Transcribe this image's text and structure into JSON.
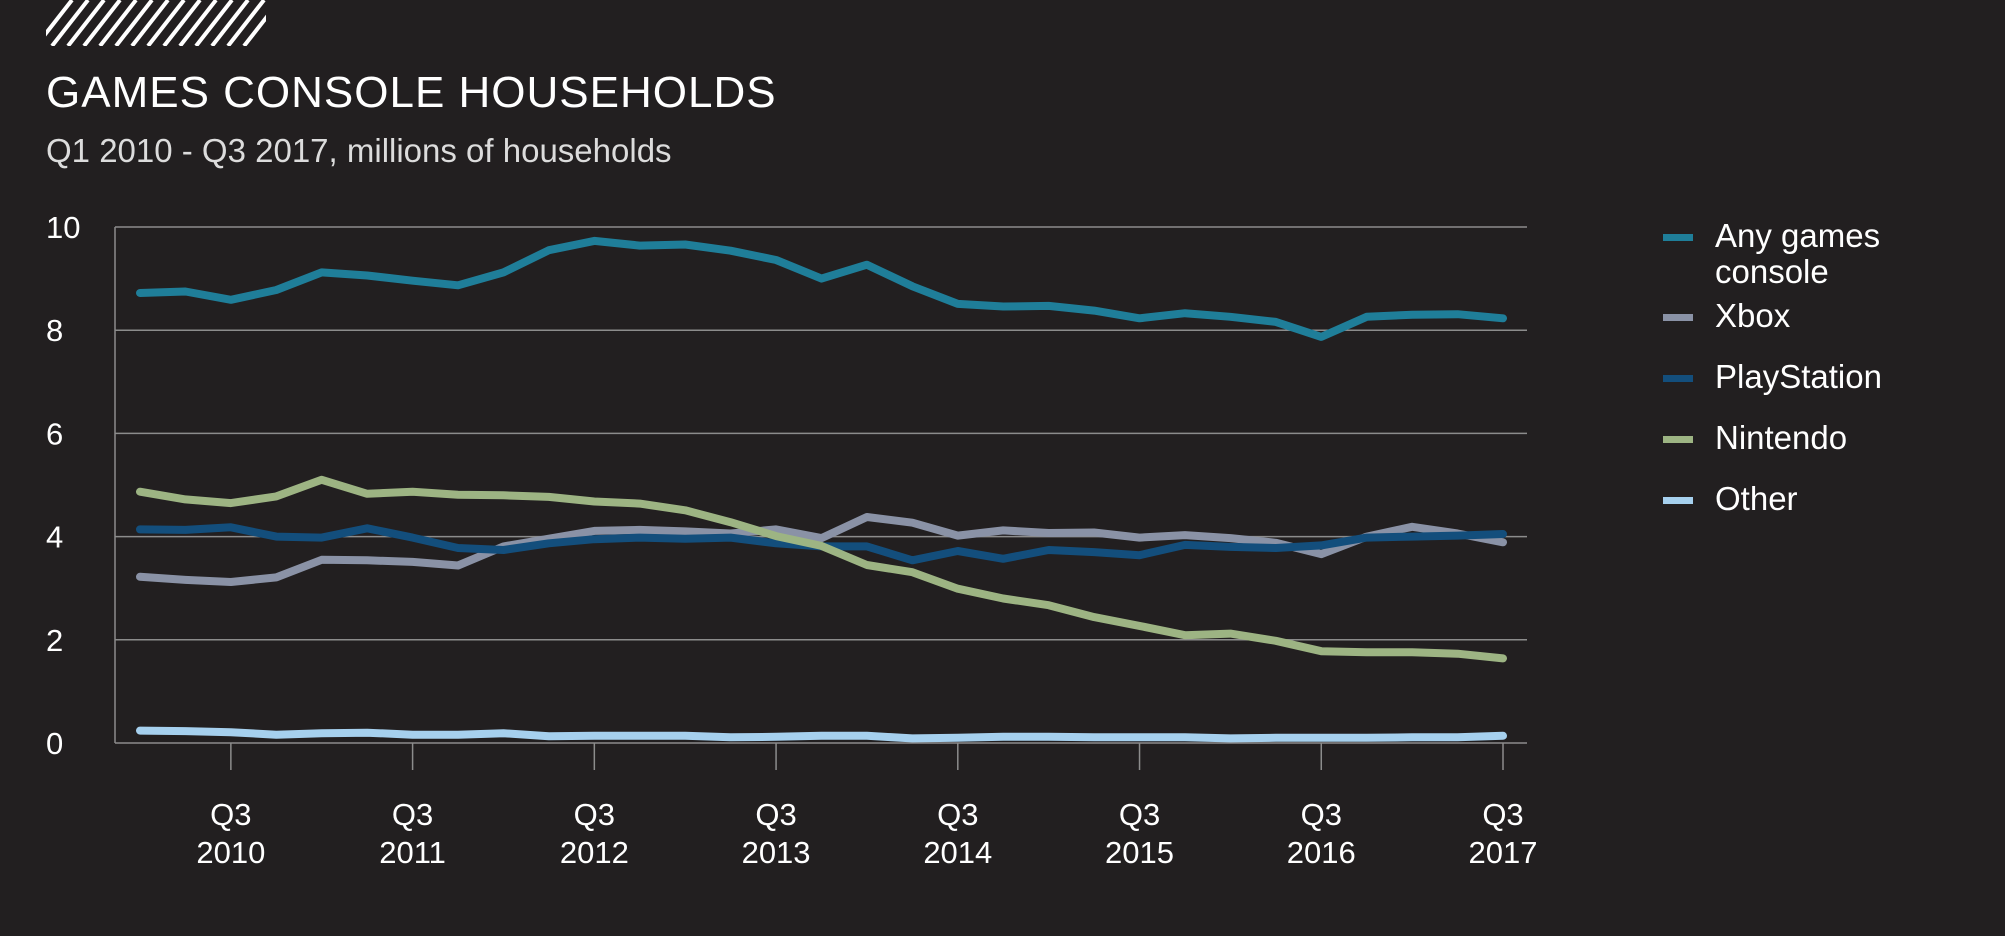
{
  "header": {
    "title": "GAMES CONSOLE HOUSEHOLDS",
    "subtitle": "Q1 2010 - Q3 2017, millions of households"
  },
  "chart_data": {
    "type": "line",
    "title": "GAMES CONSOLE HOUSEHOLDS",
    "subtitle": "Q1 2010 - Q3 2017, millions of households",
    "xlabel": "",
    "ylabel": "",
    "ylim": [
      0,
      10
    ],
    "yticks": [
      0,
      2,
      4,
      6,
      8,
      10
    ],
    "grid": true,
    "legend_position": "right",
    "x": [
      "Q1 2010",
      "Q2 2010",
      "Q3 2010",
      "Q4 2010",
      "Q1 2011",
      "Q2 2011",
      "Q3 2011",
      "Q4 2011",
      "Q1 2012",
      "Q2 2012",
      "Q3 2012",
      "Q4 2012",
      "Q1 2013",
      "Q2 2013",
      "Q3 2013",
      "Q4 2013",
      "Q1 2014",
      "Q2 2014",
      "Q3 2014",
      "Q4 2014",
      "Q1 2015",
      "Q2 2015",
      "Q3 2015",
      "Q4 2015",
      "Q1 2016",
      "Q2 2016",
      "Q3 2016",
      "Q4 2016",
      "Q1 2017",
      "Q2 2017",
      "Q3 2017"
    ],
    "x_tick_labels": [
      {
        "quarter": "Q3",
        "year": "2010",
        "index": 2
      },
      {
        "quarter": "Q3",
        "year": "2011",
        "index": 6
      },
      {
        "quarter": "Q3",
        "year": "2012",
        "index": 10
      },
      {
        "quarter": "Q3",
        "year": "2013",
        "index": 14
      },
      {
        "quarter": "Q3",
        "year": "2014",
        "index": 18
      },
      {
        "quarter": "Q3",
        "year": "2015",
        "index": 22
      },
      {
        "quarter": "Q3",
        "year": "2016",
        "index": 26
      },
      {
        "quarter": "Q3",
        "year": "2017",
        "index": 30
      }
    ],
    "series": [
      {
        "name": "Any games console",
        "color": "#1f7e99",
        "values": [
          8.72,
          8.75,
          8.59,
          8.78,
          9.12,
          9.06,
          8.96,
          8.87,
          9.12,
          9.55,
          9.73,
          9.64,
          9.66,
          9.54,
          9.36,
          9.0,
          9.27,
          8.85,
          8.51,
          8.46,
          8.47,
          8.38,
          8.23,
          8.33,
          8.26,
          8.16,
          7.87,
          8.26,
          8.3,
          8.31,
          8.23
        ]
      },
      {
        "name": "Xbox",
        "color": "#8a92a6",
        "values": [
          3.22,
          3.16,
          3.12,
          3.21,
          3.55,
          3.54,
          3.51,
          3.44,
          3.81,
          3.96,
          4.11,
          4.13,
          4.1,
          4.06,
          4.14,
          3.97,
          4.38,
          4.27,
          4.02,
          4.12,
          4.07,
          4.08,
          3.98,
          4.03,
          3.97,
          3.88,
          3.66,
          4.0,
          4.19,
          4.06,
          3.89
        ]
      },
      {
        "name": "PlayStation",
        "color": "#134e7c",
        "values": [
          4.14,
          4.13,
          4.18,
          4.0,
          3.98,
          4.16,
          3.98,
          3.78,
          3.74,
          3.87,
          3.95,
          3.98,
          3.96,
          3.98,
          3.87,
          3.81,
          3.81,
          3.54,
          3.72,
          3.57,
          3.74,
          3.7,
          3.64,
          3.84,
          3.8,
          3.78,
          3.83,
          3.98,
          4.0,
          4.02,
          4.05
        ]
      },
      {
        "name": "Nintendo",
        "color": "#9db483",
        "values": [
          4.87,
          4.72,
          4.65,
          4.78,
          5.1,
          4.83,
          4.87,
          4.81,
          4.8,
          4.77,
          4.68,
          4.64,
          4.51,
          4.28,
          4.01,
          3.82,
          3.45,
          3.31,
          2.99,
          2.8,
          2.67,
          2.44,
          2.27,
          2.09,
          2.12,
          1.98,
          1.78,
          1.76,
          1.76,
          1.73,
          1.64
        ]
      },
      {
        "name": "Other",
        "color": "#a6d0ee",
        "values": [
          0.24,
          0.23,
          0.21,
          0.16,
          0.19,
          0.2,
          0.16,
          0.16,
          0.19,
          0.13,
          0.14,
          0.14,
          0.14,
          0.11,
          0.12,
          0.14,
          0.14,
          0.09,
          0.1,
          0.12,
          0.12,
          0.11,
          0.11,
          0.11,
          0.09,
          0.1,
          0.1,
          0.1,
          0.11,
          0.11,
          0.14
        ]
      }
    ]
  },
  "legend": {
    "items": [
      {
        "line1": "Any games",
        "line2": "console",
        "color": "#1f7e99"
      },
      {
        "line1": "Xbox",
        "line2": "",
        "color": "#8a92a6"
      },
      {
        "line1": "PlayStation",
        "line2": "",
        "color": "#134e7c"
      },
      {
        "line1": "Nintendo",
        "line2": "",
        "color": "#9db483"
      },
      {
        "line1": "Other",
        "line2": "",
        "color": "#a6d0ee"
      }
    ]
  },
  "colors": {
    "background": "#221f20",
    "grid": "#8c8c8c",
    "text": "#ffffff"
  }
}
